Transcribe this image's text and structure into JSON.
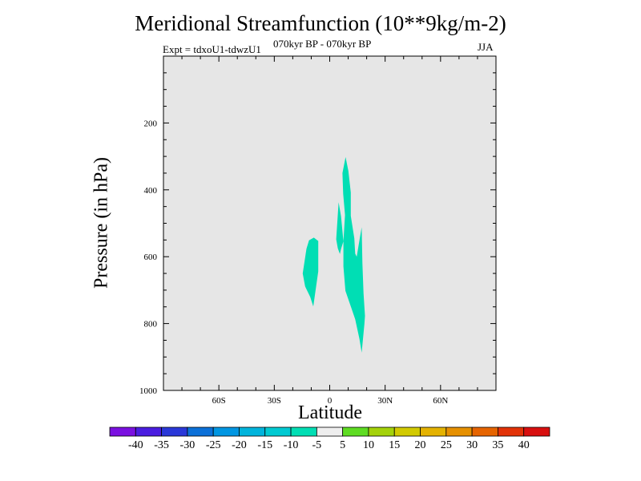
{
  "chart_data": {
    "type": "contour",
    "title": "Meridional Streamfunction (10**9kg/m-2)",
    "subtitle_left": "Expt = tdxoU1-tdwzU1",
    "subtitle_center": "070kyr BP - 070kyr BP",
    "subtitle_right": "JJA",
    "xlabel": "Latitude",
    "ylabel": "Pressure (in hPa)",
    "xlim": [
      -90,
      90
    ],
    "ylim": [
      0,
      1000
    ],
    "y_inverted": true,
    "x_ticks": [
      {
        "value": -60,
        "label": "60S"
      },
      {
        "value": -30,
        "label": "30S"
      },
      {
        "value": 0,
        "label": "0"
      },
      {
        "value": 30,
        "label": "30N"
      },
      {
        "value": 60,
        "label": "60N"
      }
    ],
    "y_ticks": [
      {
        "value": 200,
        "label": "200"
      },
      {
        "value": 400,
        "label": "400"
      },
      {
        "value": 600,
        "label": "600"
      },
      {
        "value": 800,
        "label": "800"
      },
      {
        "value": 1000,
        "label": "1000"
      }
    ],
    "background_color": "#e6e6e6",
    "regions": [
      {
        "name": "region-south",
        "level": -10,
        "color": "#00deb4",
        "points": [
          [
            -12.6,
            576
          ],
          [
            -11.2,
            551
          ],
          [
            -8.6,
            543
          ],
          [
            -6.2,
            553
          ],
          [
            -6.2,
            644
          ],
          [
            -8.9,
            749
          ],
          [
            -10.6,
            720
          ],
          [
            -13.3,
            689
          ],
          [
            -14.6,
            650
          ]
        ]
      },
      {
        "name": "region-north-a",
        "level": -10,
        "color": "#00deb4",
        "points": [
          [
            3.5,
            548
          ],
          [
            4.2,
            489
          ],
          [
            4.8,
            437
          ],
          [
            6.1,
            479
          ],
          [
            7.4,
            554
          ],
          [
            6.1,
            577
          ],
          [
            5.5,
            592
          ],
          [
            4.4,
            575
          ]
        ]
      },
      {
        "name": "region-north-b",
        "level": -10,
        "color": "#00deb4",
        "points": [
          [
            6.9,
            350
          ],
          [
            8.6,
            302
          ],
          [
            10.1,
            344
          ],
          [
            11.4,
            408
          ],
          [
            11.4,
            478
          ],
          [
            13.3,
            545
          ],
          [
            13.8,
            591
          ],
          [
            14.6,
            600
          ],
          [
            16.1,
            551
          ],
          [
            17.3,
            512
          ],
          [
            17.7,
            620
          ],
          [
            18.3,
            709
          ],
          [
            19.1,
            777
          ],
          [
            18.8,
            801
          ],
          [
            17.3,
            887
          ],
          [
            16.1,
            846
          ],
          [
            13.8,
            787
          ],
          [
            11.8,
            755
          ],
          [
            8.5,
            702
          ],
          [
            7.4,
            629
          ],
          [
            7.4,
            554
          ],
          [
            8.3,
            475
          ],
          [
            7.3,
            412
          ]
        ]
      }
    ],
    "colorbar": {
      "labels": [
        "-40",
        "-35",
        "-30",
        "-25",
        "-20",
        "-15",
        "-10",
        "-5",
        "5",
        "10",
        "15",
        "20",
        "25",
        "30",
        "35",
        "40"
      ],
      "colors": [
        "#7a10e0",
        "#4a1de0",
        "#2a38d8",
        "#0b70d8",
        "#0096e2",
        "#00b4dc",
        "#00cad2",
        "#00deb4",
        "#eeeeee",
        "#5edc22",
        "#a4d20a",
        "#d2ca00",
        "#e4b200",
        "#e69000",
        "#e66400",
        "#e23208",
        "#d80f0f"
      ]
    }
  }
}
